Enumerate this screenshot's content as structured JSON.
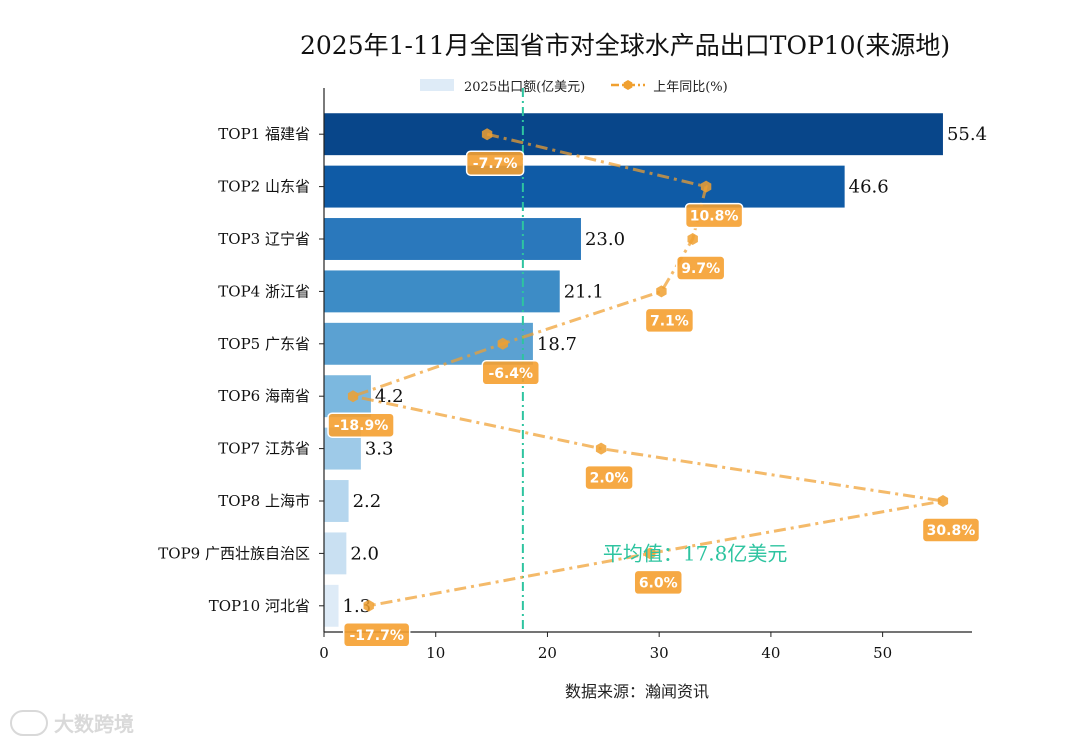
{
  "title": "2025年1-11月全国省市对全球水产品出口TOP10(来源地)",
  "legend": {
    "bar_label": "2025出口额(亿美元)",
    "line_label": "上年同比(%)"
  },
  "source": "数据来源：瀚闻资讯",
  "watermark": "大数跨境",
  "colors": {
    "line": "#f0a030",
    "label_bg": "#f5a030",
    "avg_line": "#2ec4a0",
    "bar_scale": [
      "#08468a",
      "#0f5ba6",
      "#2a78bc",
      "#3d8cc6",
      "#5ba1d2",
      "#7cb8df",
      "#9ecae8",
      "#b5d6ee",
      "#c9e0f2",
      "#deebf7"
    ]
  },
  "chart_data": {
    "type": "bar",
    "orientation": "horizontal",
    "title": "2025年1-11月全国省市对全球水产品出口TOP10(来源地)",
    "xlabel": "数据来源：瀚闻资讯",
    "ylabel": "",
    "xlim": [
      0,
      58
    ],
    "xticks": [
      0,
      10,
      20,
      30,
      40,
      50
    ],
    "categories": [
      "TOP1 福建省",
      "TOP2 山东省",
      "TOP3 辽宁省",
      "TOP4 浙江省",
      "TOP5 广东省",
      "TOP6 海南省",
      "TOP7 江苏省",
      "TOP8 上海市",
      "TOP9 广西壮族自治区",
      "TOP10 河北省"
    ],
    "series": [
      {
        "name": "2025出口额(亿美元)",
        "type": "bar",
        "values": [
          55.4,
          46.6,
          23.0,
          21.1,
          18.7,
          4.2,
          3.3,
          2.2,
          2.0,
          1.3
        ],
        "value_labels": [
          "55.4",
          "46.6",
          "23.0",
          "21.1",
          "18.7",
          "4.2",
          "3.3",
          "2.2",
          "2.0",
          "1.3"
        ]
      },
      {
        "name": "上年同比(%)",
        "type": "line",
        "values": [
          -7.7,
          10.8,
          9.7,
          7.1,
          -6.4,
          -18.9,
          2.0,
          30.8,
          6.0,
          -17.7
        ],
        "value_labels": [
          "-7.7%",
          "10.8%",
          "9.7%",
          "7.1%",
          "-6.4%",
          "-18.9%",
          "2.0%",
          "30.8%",
          "6.0%",
          "-17.7%"
        ],
        "plot_x": [
          14.6,
          34.2,
          33.0,
          30.2,
          16.0,
          2.6,
          24.8,
          55.4,
          29.2,
          4.0
        ]
      }
    ],
    "average": {
      "value": 17.8,
      "label": "平均值：17.8亿美元"
    },
    "legend_position": "top-center",
    "grid": false
  }
}
